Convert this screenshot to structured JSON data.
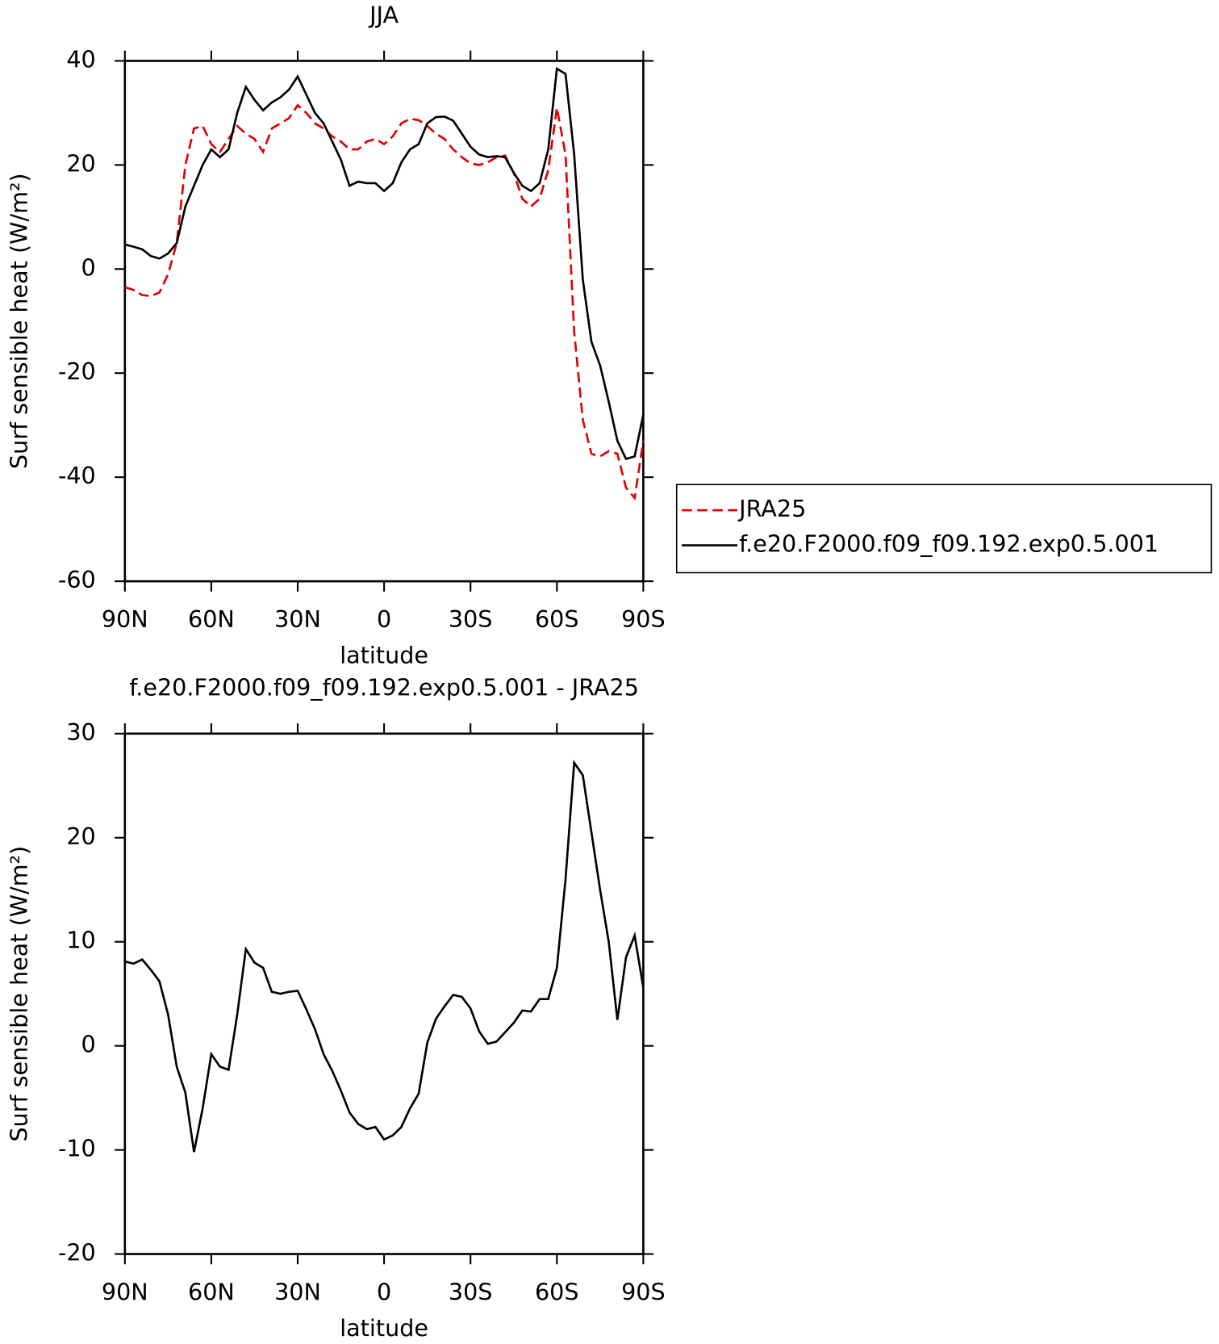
{
  "chart_data": [
    {
      "type": "line",
      "title": "JJA",
      "xlabel": "latitude",
      "ylabel": "Surf sensible heat (W/m²)",
      "x": [
        90,
        87,
        84,
        81,
        78,
        75,
        72,
        69,
        66,
        63,
        60,
        57,
        54,
        51,
        48,
        45,
        42,
        39,
        36,
        33,
        30,
        27,
        24,
        21,
        18,
        15,
        12,
        9,
        6,
        3,
        0,
        -3,
        -6,
        -9,
        -12,
        -15,
        -18,
        -21,
        -24,
        -27,
        -30,
        -33,
        -36,
        -39,
        -42,
        -45,
        -48,
        -51,
        -54,
        -57,
        -60,
        -63,
        -66,
        -69,
        -72,
        -75,
        -78,
        -81,
        -84,
        -87,
        -90
      ],
      "series": [
        {
          "name": "JRA25",
          "color": "#e00000",
          "dashed": true,
          "values": [
            -3.5,
            -4,
            -5,
            -5.2,
            -4.5,
            -1,
            5,
            20,
            27,
            27.5,
            24,
            22.5,
            25,
            27.5,
            26,
            25,
            22.5,
            27,
            28,
            29,
            31.5,
            30,
            28,
            27,
            25.5,
            24.5,
            23,
            23,
            24.5,
            25,
            24,
            25.5,
            28,
            28.9,
            28.6,
            27.5,
            26,
            25,
            23,
            21.5,
            20.3,
            20,
            20.5,
            21.5,
            21.8,
            18.5,
            13.5,
            12,
            13.5,
            19,
            31,
            22,
            -12,
            -29,
            -35.5,
            -36,
            -35,
            -35.5,
            -42,
            -44,
            -33
          ]
        },
        {
          "name": "f.e20.F2000.f09_f09.192.exp0.5.001",
          "color": "#000000",
          "dashed": false,
          "values": [
            4.7,
            4.3,
            3.8,
            2.5,
            2,
            3,
            5,
            12,
            16,
            20,
            23,
            21.5,
            23,
            30,
            35,
            32.5,
            30.5,
            32,
            33,
            34.5,
            37,
            33.5,
            30,
            28,
            24.5,
            21,
            16,
            16.8,
            16.5,
            16.5,
            15,
            16.5,
            20.5,
            23,
            24,
            28,
            29.2,
            29.3,
            28.5,
            26,
            23.5,
            22,
            21.5,
            21.7,
            21.5,
            18.5,
            16,
            15,
            16.5,
            23,
            38.5,
            37.5,
            22,
            -2,
            -14,
            -18.5,
            -25.5,
            -33,
            -36.5,
            -36,
            -28
          ]
        }
      ],
      "xlim": [
        90,
        -90
      ],
      "xticks": [
        {
          "value": 90,
          "label": "90N"
        },
        {
          "value": 60,
          "label": "60N"
        },
        {
          "value": 30,
          "label": "30N"
        },
        0,
        {
          "value": -30,
          "label": "30S"
        },
        {
          "value": -60,
          "label": "60S"
        },
        {
          "value": -90,
          "label": "90S"
        }
      ],
      "ylim": [
        -60,
        40
      ],
      "yticks": [
        -60,
        -40,
        -20,
        0,
        20,
        40
      ],
      "legend": "right"
    },
    {
      "type": "line",
      "title": "f.e20.F2000.f09_f09.192.exp0.5.001 - JRA25",
      "xlabel": "latitude",
      "ylabel": "Surf sensible heat (W/m²)",
      "x": [
        90,
        87,
        84,
        81,
        78,
        75,
        72,
        69,
        66,
        63,
        60,
        57,
        54,
        51,
        48,
        45,
        42,
        39,
        36,
        33,
        30,
        27,
        24,
        21,
        18,
        15,
        12,
        9,
        6,
        3,
        0,
        -3,
        -6,
        -9,
        -12,
        -15,
        -18,
        -21,
        -24,
        -27,
        -30,
        -33,
        -36,
        -39,
        -42,
        -45,
        -48,
        -51,
        -54,
        -57,
        -60,
        -63,
        -66,
        -69,
        -72,
        -75,
        -78,
        -81,
        -84,
        -87,
        -90
      ],
      "series": [
        {
          "color": "#000000",
          "dashed": false,
          "values": [
            8.1,
            7.9,
            8.3,
            7.3,
            6.2,
            3,
            -2,
            -4.5,
            -10.2,
            -6,
            -0.8,
            -2,
            -2.3,
            3,
            9.3,
            8,
            7.5,
            5.2,
            5,
            5.2,
            5.3,
            3.5,
            1.6,
            -0.8,
            -2.4,
            -4.3,
            -6.4,
            -7.5,
            -8,
            -7.8,
            -9,
            -8.6,
            -7.8,
            -6,
            -4.6,
            0.3,
            2.6,
            3.8,
            4.9,
            4.7,
            3.6,
            1.4,
            0.2,
            0.4,
            1.3,
            2.2,
            3.4,
            3.3,
            4.5,
            4.5,
            7.5,
            16,
            27.2,
            26,
            20.5,
            15,
            10,
            2.5,
            8.5,
            10.6,
            5.6
          ]
        }
      ],
      "xlim": [
        90,
        -90
      ],
      "xticks": [
        {
          "value": 90,
          "label": "90N"
        },
        {
          "value": 60,
          "label": "60N"
        },
        {
          "value": 30,
          "label": "30N"
        },
        0,
        {
          "value": -30,
          "label": "30S"
        },
        {
          "value": -60,
          "label": "60S"
        },
        {
          "value": -90,
          "label": "90S"
        }
      ],
      "ylim": [
        -20,
        30
      ],
      "yticks": [
        -20,
        -10,
        0,
        10,
        20,
        30
      ]
    }
  ]
}
